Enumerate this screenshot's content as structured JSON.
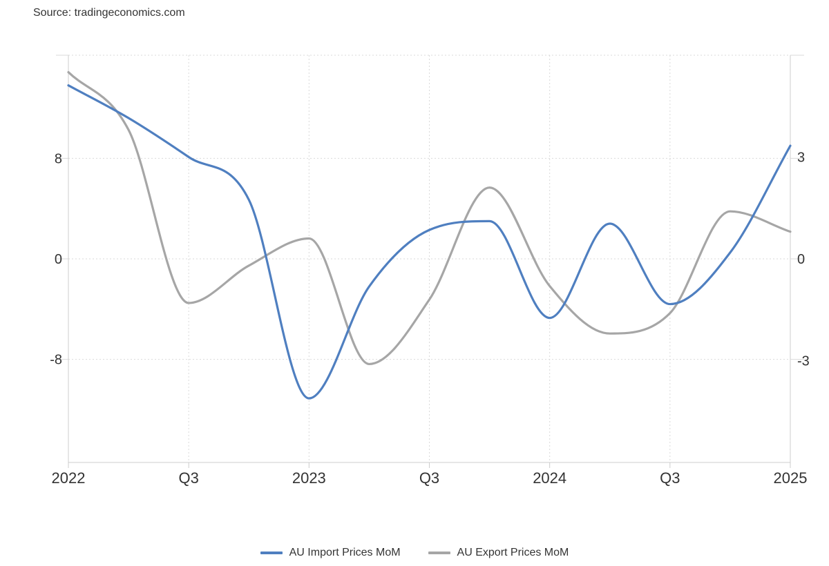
{
  "source": "Source: tradingeconomics.com",
  "colors": {
    "import": "#4f7fc0",
    "export": "#a6a6a6",
    "grid": "#d9d9d9",
    "axis": "#cccccc"
  },
  "chart_data": {
    "type": "line",
    "title": "",
    "x_tick_labels": [
      {
        "label": "2022",
        "date": "2022-01"
      },
      {
        "label": "Q3",
        "date": "2022-07"
      },
      {
        "label": "2023",
        "date": "2023-01"
      },
      {
        "label": "Q3",
        "date": "2023-07"
      },
      {
        "label": "2024",
        "date": "2024-01"
      },
      {
        "label": "Q3",
        "date": "2024-07"
      },
      {
        "label": "2025",
        "date": "2025-01"
      }
    ],
    "y_left": {
      "ticks": [
        8,
        0,
        -8
      ],
      "labels": [
        "8",
        "0",
        "-8"
      ],
      "range": [
        -16.2,
        16.2
      ]
    },
    "y_right": {
      "ticks": [
        3,
        0,
        -3
      ],
      "labels": [
        "3",
        "0",
        "-3"
      ],
      "range": [
        -6,
        6
      ]
    },
    "grid": true,
    "legend_position": "bottom-center",
    "series": [
      {
        "name": "AU Import Prices MoM",
        "axis": "left",
        "color": "#4f7fc0",
        "points": [
          [
            "2022-01",
            13.8
          ],
          [
            "2022-04",
            11.2
          ],
          [
            "2022-07",
            8.1
          ],
          [
            "2022-10",
            4.7
          ],
          [
            "2023-01",
            -11.1
          ],
          [
            "2023-04",
            -2.2
          ],
          [
            "2023-07",
            2.3
          ],
          [
            "2023-10",
            3.0
          ],
          [
            "2024-01",
            -4.7
          ],
          [
            "2024-04",
            2.8
          ],
          [
            "2024-07",
            -3.6
          ],
          [
            "2024-10",
            0.5
          ],
          [
            "2025-01",
            9.0
          ]
        ]
      },
      {
        "name": "AU Export Prices MoM",
        "axis": "right",
        "color": "#a6a6a6",
        "points": [
          [
            "2022-01",
            5.5
          ],
          [
            "2022-04",
            3.8
          ],
          [
            "2022-07",
            -1.3
          ],
          [
            "2022-10",
            -0.2
          ],
          [
            "2023-01",
            0.6
          ],
          [
            "2023-04",
            -3.1
          ],
          [
            "2023-07",
            -1.2
          ],
          [
            "2023-10",
            2.1
          ],
          [
            "2024-01",
            -0.8
          ],
          [
            "2024-04",
            -2.2
          ],
          [
            "2024-07",
            -1.6
          ],
          [
            "2024-10",
            1.4
          ],
          [
            "2025-01",
            0.8
          ]
        ]
      }
    ]
  }
}
